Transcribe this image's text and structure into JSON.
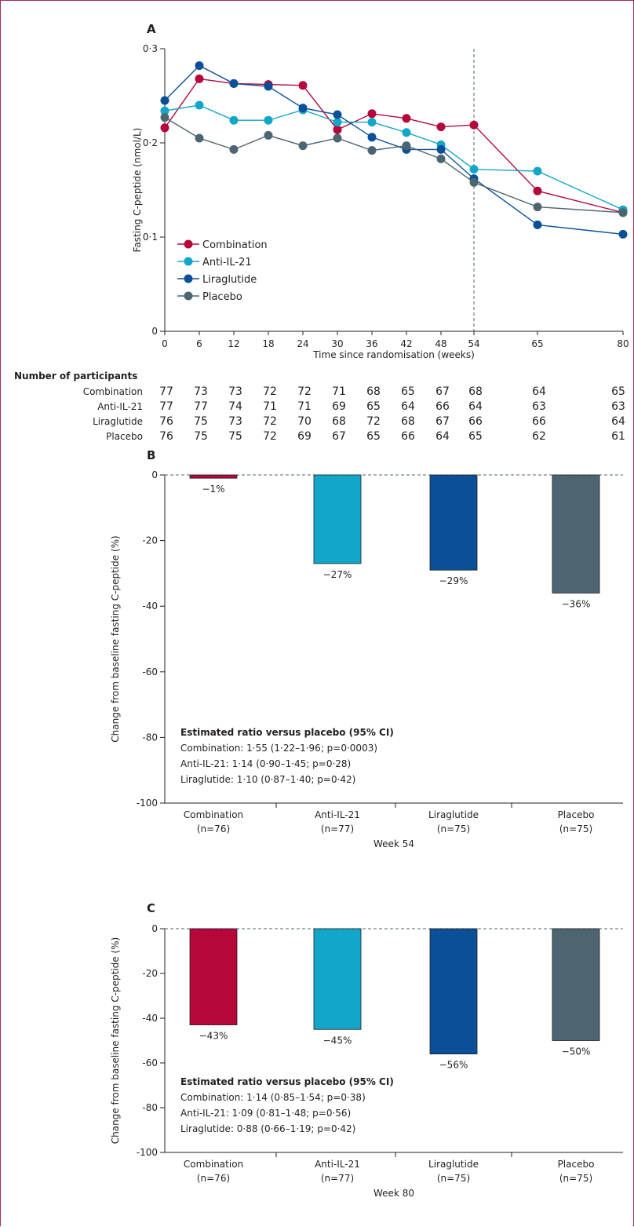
{
  "colors": {
    "Combination": "#b5073a",
    "Anti-IL-21": "#12a6c8",
    "Liraglutide": "#0a4f98",
    "Placebo": "#4c6570",
    "frame": "#a2285e",
    "axis": "#231f20",
    "reference": "#4c6570"
  },
  "chart_data": [
    {
      "type": "line",
      "panel_label": "A",
      "xlabel": "Time since randomisation (weeks)",
      "ylabel": "Fasting C-peptide (nmol/L)",
      "x": [
        0,
        6,
        12,
        18,
        24,
        30,
        36,
        42,
        48,
        54,
        65,
        80
      ],
      "x_tick_labels": [
        "0",
        "6",
        "12",
        "18",
        "24",
        "30",
        "36",
        "42",
        "48",
        "54",
        "65",
        "80"
      ],
      "ylim": [
        0,
        0.3
      ],
      "y_ticks": [
        0,
        0.1,
        0.2,
        0.3
      ],
      "y_tick_labels": [
        "0",
        "0·1",
        "0·2",
        "0·3"
      ],
      "reference_line_x": 54,
      "legend_position": "bottom-left",
      "grid": false,
      "series": [
        {
          "name": "Combination",
          "values": [
            0.216,
            0.268,
            0.263,
            0.262,
            0.261,
            0.214,
            0.231,
            0.226,
            0.217,
            0.219,
            0.149,
            0.126
          ]
        },
        {
          "name": "Anti-IL-21",
          "values": [
            0.234,
            0.24,
            0.224,
            0.224,
            0.235,
            0.222,
            0.222,
            0.211,
            0.198,
            0.172,
            0.17,
            0.129
          ]
        },
        {
          "name": "Liraglutide",
          "values": [
            0.245,
            0.282,
            0.263,
            0.26,
            0.237,
            0.23,
            0.206,
            0.193,
            0.193,
            0.162,
            0.113,
            0.103
          ]
        },
        {
          "name": "Placebo",
          "values": [
            0.227,
            0.205,
            0.193,
            0.208,
            0.197,
            0.205,
            0.192,
            0.197,
            0.183,
            0.158,
            0.132,
            0.126
          ]
        }
      ],
      "participants": {
        "title": "Number of participants",
        "rows": [
          {
            "name": "Combination",
            "values": [
              "77",
              "73",
              "73",
              "72",
              "72",
              "71",
              "68",
              "65",
              "67",
              "68",
              "64",
              "65"
            ]
          },
          {
            "name": "Anti-IL-21",
            "values": [
              "77",
              "77",
              "74",
              "71",
              "71",
              "69",
              "65",
              "64",
              "66",
              "64",
              "63",
              "63"
            ]
          },
          {
            "name": "Liraglutide",
            "values": [
              "76",
              "75",
              "73",
              "72",
              "70",
              "68",
              "72",
              "68",
              "67",
              "66",
              "66",
              "64"
            ]
          },
          {
            "name": "Placebo",
            "values": [
              "76",
              "75",
              "75",
              "72",
              "69",
              "67",
              "65",
              "66",
              "64",
              "65",
              "62",
              "61"
            ]
          }
        ]
      }
    },
    {
      "type": "bar",
      "panel_label": "B",
      "xlabel": "Week 54",
      "ylabel": "Change from baseline fasting C-peptide (%)",
      "categories": [
        "Combination",
        "Anti-IL-21",
        "Liraglutide",
        "Placebo"
      ],
      "category_n": [
        "(n=76)",
        "(n=77)",
        "(n=75)",
        "(n=75)"
      ],
      "values": [
        -1,
        -27,
        -29,
        -36
      ],
      "value_labels": [
        "−1%",
        "−27%",
        "−29%",
        "−36%"
      ],
      "ylim": [
        -100,
        0
      ],
      "y_ticks": [
        0,
        -20,
        -40,
        -60,
        -80,
        -100
      ],
      "y_tick_labels": [
        "0",
        "-20",
        "-40",
        "-60",
        "-80",
        "-100"
      ],
      "annotation": {
        "title": "Estimated ratio versus placebo (95% CI)",
        "lines": [
          "Combination: 1·55 (1·22–1·96; p=0·0003)",
          "Anti-IL-21: 1·14 (0·90–1·45; p=0·28)",
          "Liraglutide: 1·10 (0·87–1·40; p=0·42)"
        ]
      }
    },
    {
      "type": "bar",
      "panel_label": "C",
      "xlabel": "Week 80",
      "ylabel": "Change from baseline fasting C-peptide (%)",
      "categories": [
        "Combination",
        "Anti-IL-21",
        "Liraglutide",
        "Placebo"
      ],
      "category_n": [
        "(n=76)",
        "(n=77)",
        "(n=75)",
        "(n=75)"
      ],
      "values": [
        -43,
        -45,
        -56,
        -50
      ],
      "value_labels": [
        "−43%",
        "−45%",
        "−56%",
        "−50%"
      ],
      "ylim": [
        -100,
        0
      ],
      "y_ticks": [
        0,
        -20,
        -40,
        -60,
        -80,
        -100
      ],
      "y_tick_labels": [
        "0",
        "-20",
        "-40",
        "-60",
        "-80",
        "-100"
      ],
      "annotation": {
        "title": "Estimated ratio versus placebo (95% CI)",
        "lines": [
          "Combination: 1·14 (0·85–1·54; p=0·38)",
          "Anti-IL-21: 1·09 (0·81–1·48; p=0·56)",
          "Liraglutide: 0·88 (0·66–1·19; p=0·42)"
        ]
      }
    }
  ]
}
